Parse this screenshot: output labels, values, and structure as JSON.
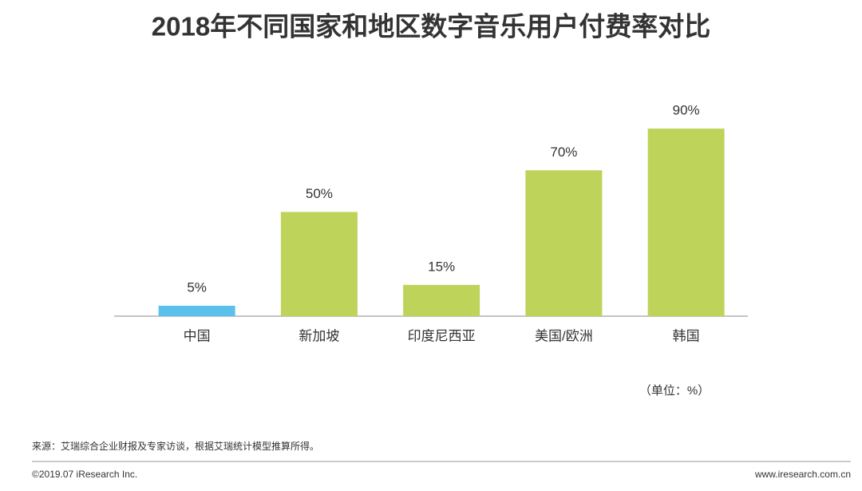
{
  "chart_data": {
    "type": "bar",
    "title": "2018年不同国家和地区数字音乐用户付费率对比",
    "categories": [
      "中国",
      "新加坡",
      "印度尼西亚",
      "美国/欧洲",
      "韩国"
    ],
    "values": [
      5,
      50,
      15,
      70,
      90
    ],
    "value_labels": [
      "5%",
      "50%",
      "15%",
      "70%",
      "90%"
    ],
    "colors": [
      "#5bc0eb",
      "#bdd35a",
      "#bdd35a",
      "#bdd35a",
      "#bdd35a"
    ],
    "unit_note": "（单位：%）",
    "source": "来源：艾瑞综合企业财报及专家访谈，根据艾瑞统计模型推算所得。"
  },
  "footer": {
    "left": "©2019.07 iResearch Inc.",
    "right": "www.iresearch.com.cn"
  }
}
